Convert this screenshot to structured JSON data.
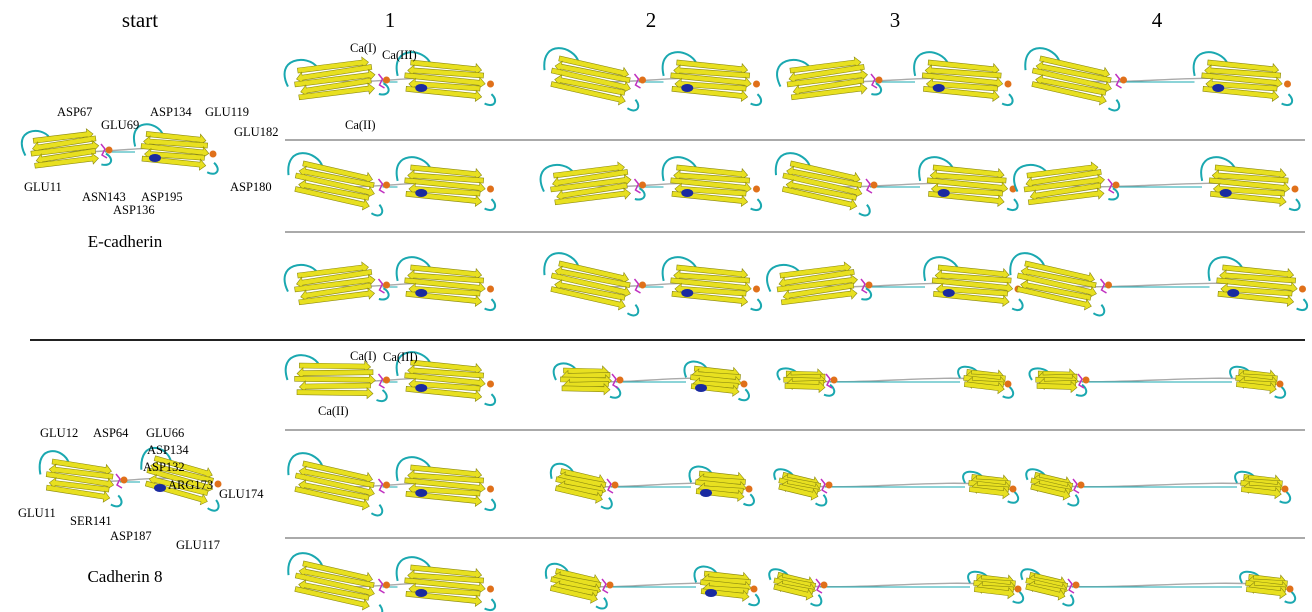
{
  "columns": [
    "start",
    "1",
    "2",
    "3",
    "4"
  ],
  "panels": [
    {
      "name": "E-cadherin",
      "start_labels": [
        "ASP67",
        "GLU69",
        "ASP134",
        "GLU119",
        "GLU182",
        "GLU11",
        "ASN143",
        "ASP195",
        "ASP136",
        "ASP180"
      ],
      "calcium_labels": [
        "Ca(I)",
        "Ca(III)",
        "Ca(II)"
      ]
    },
    {
      "name": "Cadherin 8",
      "start_labels": [
        "GLU12",
        "ASP64",
        "GLU66",
        "ASP134",
        "ASP132",
        "ARG173",
        "GLU174",
        "GLU11",
        "SER141",
        "ASP187",
        "GLU117"
      ],
      "calcium_labels": [
        "Ca(I)",
        "Ca(III)",
        "Ca(II)"
      ]
    }
  ]
}
